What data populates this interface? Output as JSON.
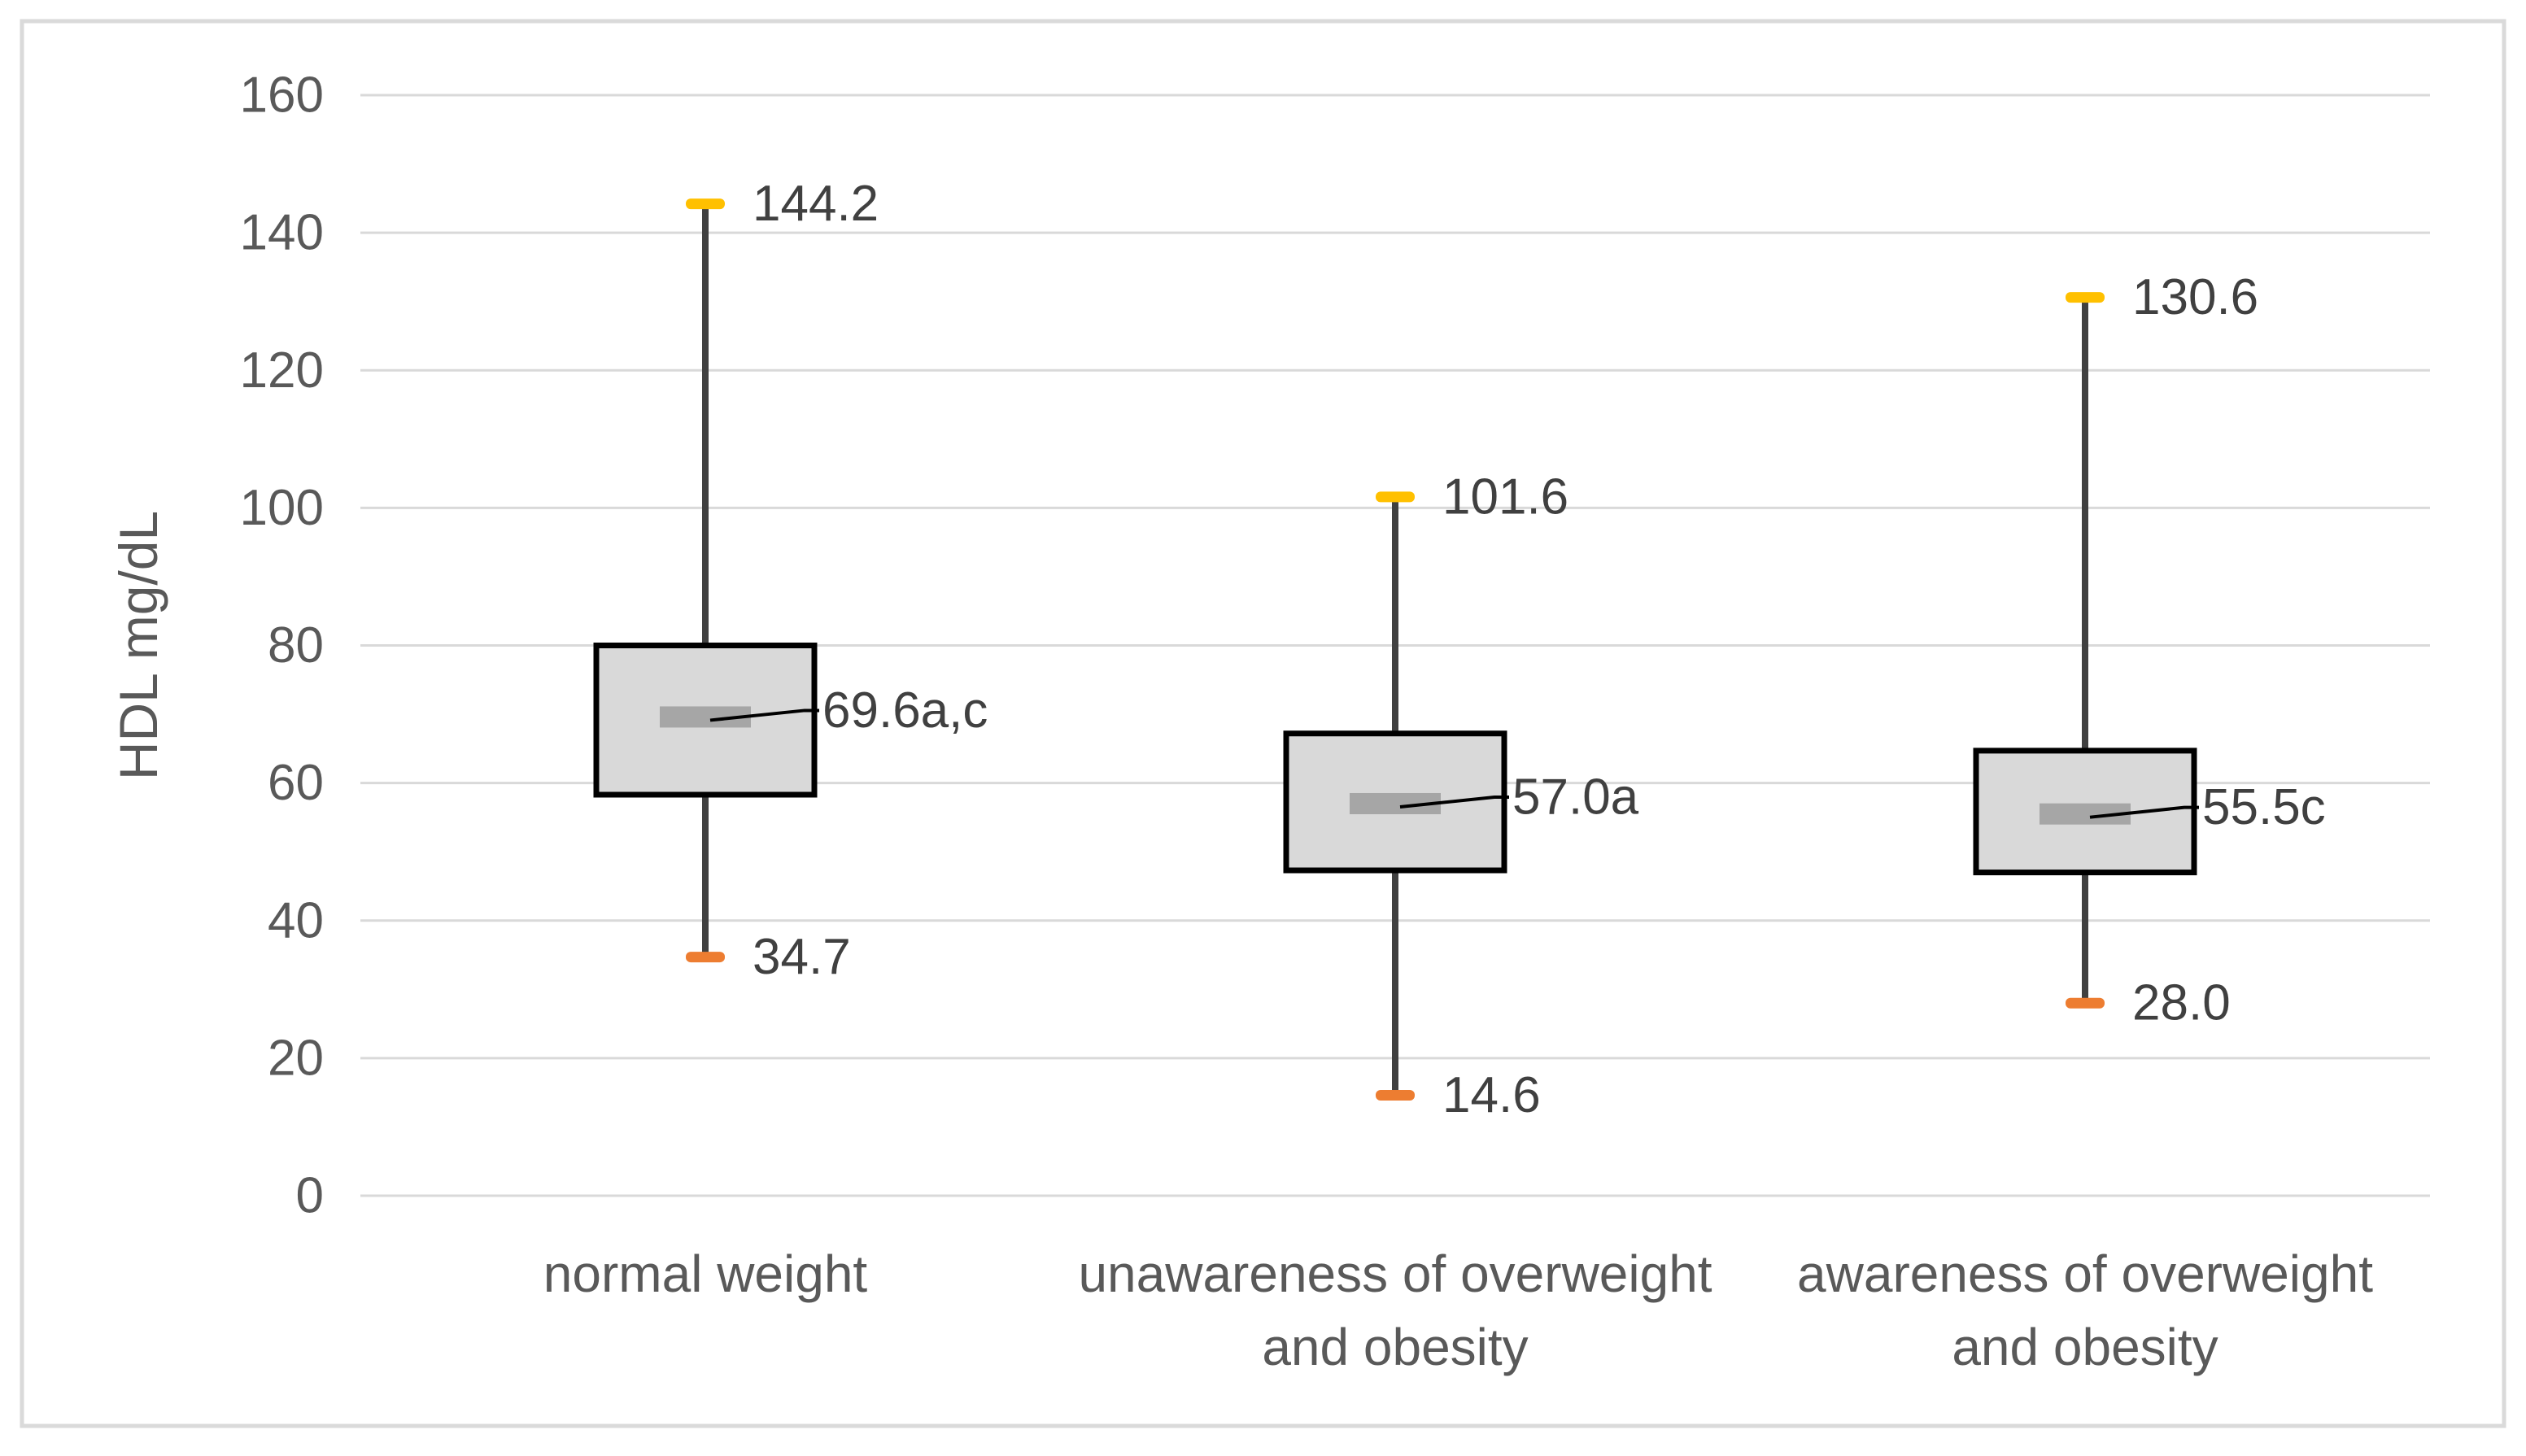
{
  "chart_data": {
    "type": "box",
    "title": "",
    "xlabel": "",
    "ylabel": "HDL mg/dL",
    "ylim": [
      0,
      160
    ],
    "yticks": [
      0,
      20,
      40,
      60,
      80,
      100,
      120,
      140,
      160
    ],
    "grid": true,
    "legend": false,
    "groups": [
      {
        "label": "normal weight",
        "label_lines": [
          "normal weight"
        ],
        "whisker_max": 144.2,
        "whisker_min": 34.7,
        "q3": 80.0,
        "q1": 58.3,
        "mean": 69.6,
        "max_label": "144.2",
        "min_label": "34.7",
        "mean_label": "69.6a,c"
      },
      {
        "label": "unawareness of overweight and obesity",
        "label_lines": [
          "unawareness of overweight",
          "and obesity"
        ],
        "whisker_max": 101.6,
        "whisker_min": 14.6,
        "q3": 67.2,
        "q1": 47.3,
        "mean": 57.0,
        "max_label": "101.6",
        "min_label": "14.6",
        "mean_label": "57.0a"
      },
      {
        "label": "awareness of overweight and obesity",
        "label_lines": [
          "awareness of overweight",
          "and obesity"
        ],
        "whisker_max": 130.6,
        "whisker_min": 28.0,
        "q3": 64.7,
        "q1": 47.0,
        "mean": 55.5,
        "max_label": "130.6",
        "min_label": "28.0",
        "mean_label": "55.5c"
      }
    ],
    "colors": {
      "upper_cap": "#FFC000",
      "lower_cap": "#ED7D31",
      "box_fill": "#D9D9D9",
      "box_border": "#000000",
      "whisker": "#404040",
      "mean_marker": "#A6A6A6",
      "gridline": "#D9D9D9",
      "frame_border": "#DADADA",
      "axis_text": "#595959",
      "value_text": "#404040",
      "background": "#FFFFFF"
    }
  }
}
